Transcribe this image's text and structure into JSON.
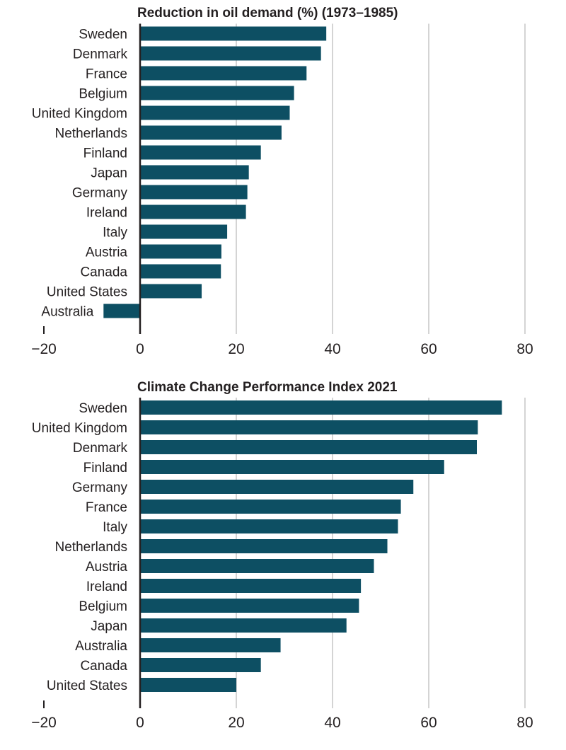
{
  "colors": {
    "bar": "#0d4f63",
    "grid": "#a9a9a9",
    "axis": "#231f20",
    "text": "#231f20"
  },
  "chart_data": [
    {
      "type": "bar",
      "orientation": "horizontal",
      "title": "Reduction in oil demand (%) (1973–1985)",
      "xlabel": "",
      "ylabel": "",
      "xlim": [
        -20,
        80
      ],
      "xticks": [
        -20,
        0,
        20,
        40,
        60,
        80
      ],
      "xtick_labels": [
        "−20",
        "0",
        "20",
        "40",
        "60",
        "80"
      ],
      "grid": true,
      "categories": [
        "Sweden",
        "Denmark",
        "France",
        "Belgium",
        "United Kingdom",
        "Netherlands",
        "Finland",
        "Japan",
        "Germany",
        "Ireland",
        "Italy",
        "Austria",
        "Canada",
        "United States",
        "Australia"
      ],
      "values": [
        38.7,
        37.6,
        34.6,
        32.0,
        31.1,
        29.4,
        25.1,
        22.6,
        22.3,
        22.0,
        18.1,
        16.9,
        16.8,
        12.8,
        -7.6
      ]
    },
    {
      "type": "bar",
      "orientation": "horizontal",
      "title": "Climate Change Performance Index 2021",
      "xlabel": "",
      "ylabel": "",
      "xlim": [
        -20,
        80
      ],
      "xticks": [
        -20,
        0,
        20,
        40,
        60,
        80
      ],
      "xtick_labels": [
        "−20",
        "0",
        "20",
        "40",
        "60",
        "80"
      ],
      "grid": true,
      "categories": [
        "Sweden",
        "United Kingdom",
        "Denmark",
        "Finland",
        "Germany",
        "France",
        "Italy",
        "Netherlands",
        "Austria",
        "Ireland",
        "Belgium",
        "Japan",
        "Australia",
        "Canada",
        "United States"
      ],
      "values": [
        75.2,
        70.2,
        70.0,
        63.2,
        56.8,
        54.2,
        53.6,
        51.4,
        48.6,
        45.9,
        45.5,
        42.9,
        29.2,
        25.1,
        20.0
      ]
    }
  ]
}
